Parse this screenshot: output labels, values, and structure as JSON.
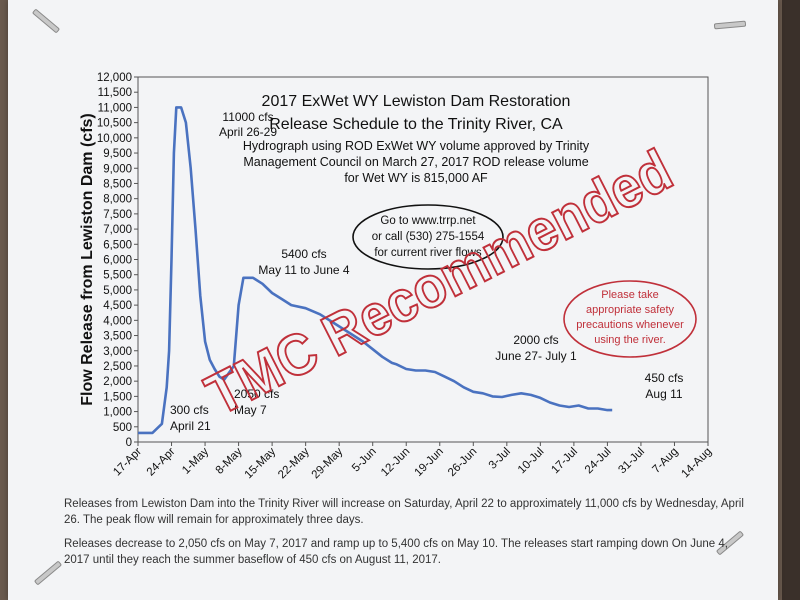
{
  "chart_data": {
    "type": "line",
    "title_lines": [
      "2017 ExWet WY Lewiston Dam Restoration",
      "Release Schedule to the Trinity River, CA"
    ],
    "subtitle_lines": [
      "Hydrograph using ROD ExWet WY volume approved by Trinity",
      "Management Council on March 27, 2017 ROD release volume",
      "for Wet WY is 815,000 AF"
    ],
    "ylabel": "Flow Release from Lewiston Dam (cfs)",
    "xlabel": "",
    "ylim": [
      0,
      12000
    ],
    "yticks": [
      "0",
      "500",
      "1,000",
      "1,500",
      "2,000",
      "2,500",
      "3,000",
      "3,500",
      "4,000",
      "4,500",
      "5,000",
      "5,500",
      "6,000",
      "6,500",
      "7,000",
      "7,500",
      "8,000",
      "8,500",
      "9,000",
      "9,500",
      "10,000",
      "10,500",
      "11,000",
      "11,500",
      "12,000"
    ],
    "xticks": [
      "17-Apr",
      "24-Apr",
      "1-May",
      "8-May",
      "15-May",
      "22-May",
      "29-May",
      "5-Jun",
      "12-Jun",
      "19-Jun",
      "26-Jun",
      "3-Jul",
      "10-Jul",
      "17-Jul",
      "24-Jul",
      "31-Jul",
      "7-Aug",
      "14-Aug"
    ],
    "grid": false,
    "line_color": "#4a72c0",
    "series": [
      {
        "x": [
          0,
          3,
          5,
          5.5,
          6,
          6.5,
          7,
          7.5,
          8,
          9,
          10,
          11,
          12,
          13,
          14,
          15,
          16,
          17,
          18,
          20,
          21,
          22,
          24,
          26,
          28,
          30,
          32,
          35,
          38,
          41,
          44,
          47,
          49,
          51,
          53,
          54,
          56,
          58,
          60,
          62,
          64,
          66,
          68,
          70,
          72,
          74,
          76,
          78,
          80,
          82,
          84,
          86,
          88,
          90,
          92,
          94,
          96,
          98,
          99
        ],
        "values": [
          300,
          300,
          600,
          1200,
          1800,
          3000,
          6000,
          9500,
          11000,
          11000,
          10500,
          9000,
          7000,
          4800,
          3300,
          2700,
          2400,
          2150,
          2050,
          2500,
          4500,
          5400,
          5400,
          5200,
          4900,
          4700,
          4500,
          4400,
          4200,
          3900,
          3600,
          3300,
          3050,
          2800,
          2600,
          2550,
          2400,
          2350,
          2350,
          2300,
          2150,
          2000,
          1800,
          1650,
          1600,
          1500,
          1480,
          1550,
          1600,
          1550,
          1450,
          1300,
          1200,
          1150,
          1200,
          1100,
          1100,
          1050,
          1050
        ]
      }
    ],
    "annotations": [
      {
        "lines": [
          "11000 cfs",
          "April 26-29"
        ]
      },
      {
        "lines": [
          "5400 cfs",
          "May 11 to June 4"
        ]
      },
      {
        "lines": [
          "2050 cfs",
          "May 7"
        ]
      },
      {
        "lines": [
          "300 cfs",
          "April 21"
        ]
      },
      {
        "lines": [
          "2000 cfs",
          "June 27- July 1"
        ]
      },
      {
        "lines": [
          "450 cfs",
          "Aug 11"
        ]
      }
    ],
    "info_oval": [
      "Go to www.trrp.net",
      "or call (530) 275-1554",
      "for current river flows"
    ],
    "safety_oval": [
      "Please take",
      "appropriate safety",
      "precautions whenever",
      "using the river."
    ],
    "stamp_text": "TMC Recommended",
    "stamp_color": "#c0303a"
  },
  "footer": {
    "para1": "Releases from Lewiston Dam into the Trinity River will increase on Saturday, April 22 to approximately 11,000 cfs by Wednesday, April 26. The peak flow will remain for approximately three days.",
    "para2": "Releases decrease to 2,050 cfs on May 7, 2017 and ramp up to 5,400 cfs on May 10. The releases start ramping down On June 4, 2017 until they reach the summer baseflow of 450 cfs on August 11, 2017."
  }
}
